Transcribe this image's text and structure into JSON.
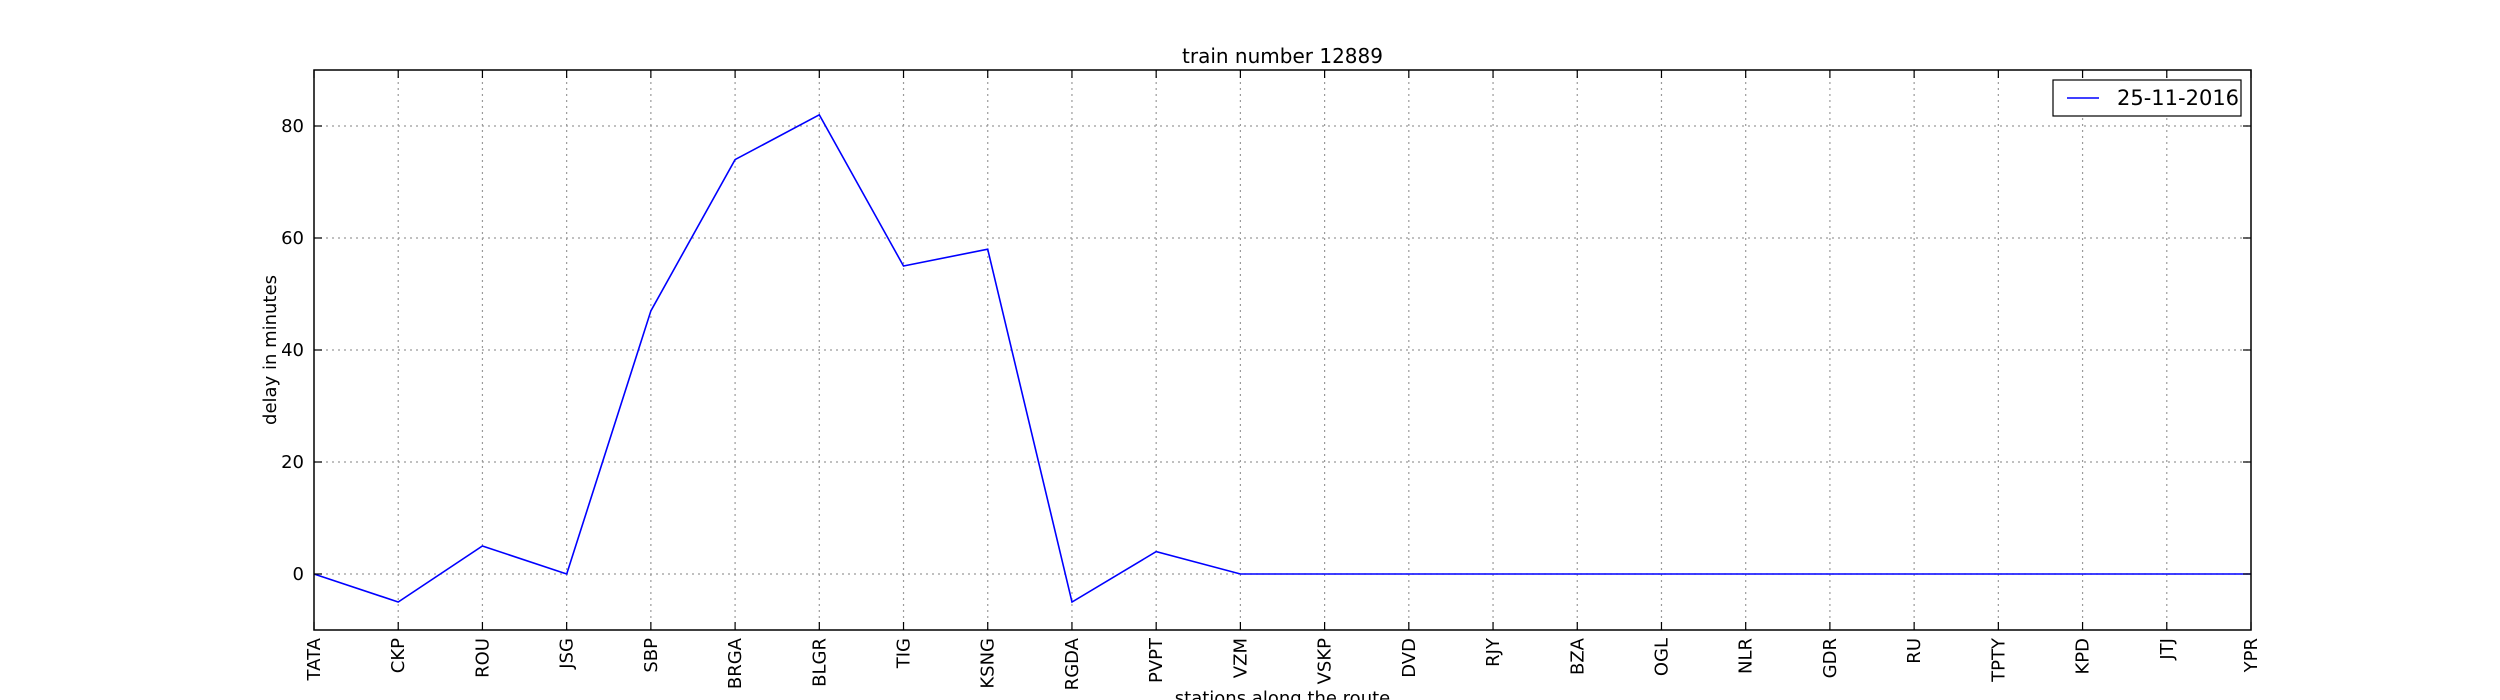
{
  "chart_data": {
    "type": "line",
    "title": "train number 12889",
    "xlabel": "stations along the route",
    "ylabel": "delay in minutes",
    "categories": [
      "TATA",
      "CKP",
      "ROU",
      "JSG",
      "SBP",
      "BRGA",
      "BLGR",
      "TIG",
      "KSNG",
      "RGDA",
      "PVPT",
      "VZM",
      "VSKP",
      "DVD",
      "RJY",
      "BZA",
      "OGL",
      "NLR",
      "GDR",
      "RU",
      "TPTY",
      "KPD",
      "JTJ",
      "YPR"
    ],
    "yticks": [
      0,
      20,
      40,
      60,
      80
    ],
    "ylim": [
      -10,
      90
    ],
    "grid": true,
    "legend_position": "top-right",
    "series": [
      {
        "name": "25-11-2016",
        "color": "#0000ff",
        "values": [
          0,
          -5,
          5,
          0,
          47,
          74,
          82,
          55,
          58,
          -5,
          4,
          0,
          0,
          0,
          0,
          0,
          0,
          0,
          0,
          0,
          0,
          0,
          0,
          0
        ]
      }
    ]
  }
}
